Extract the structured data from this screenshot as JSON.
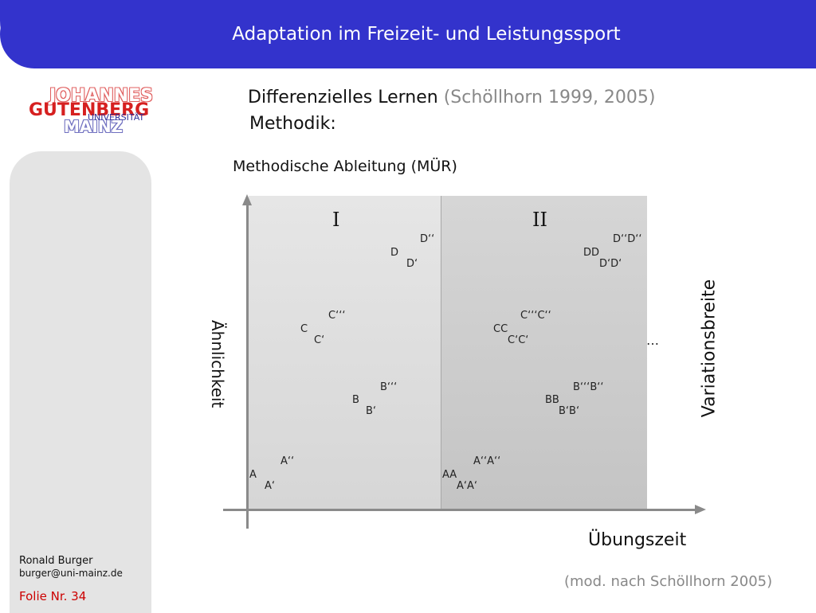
{
  "header": {
    "title": "Adaptation im Freizeit- und Leistungssport"
  },
  "logo": {
    "line1": "JOHANNES",
    "line2": "GUTENBERG",
    "line3": "MAINZ",
    "line4": "UNIVERSITÄT"
  },
  "content": {
    "heading_main": "Differenzielles Lernen",
    "heading_cite": "(Schöllhorn 1999, 2005)",
    "heading_sub": "Methodik:",
    "subtitle": "Methodische Ableitung (MÜR)"
  },
  "diagram": {
    "regions": [
      "I",
      "II"
    ],
    "y_axis_label": "Ähnlichkeit",
    "x_axis_label": "Übungszeit",
    "right_label": "Variationsbreite",
    "ellipsis": "…",
    "points": {
      "d1": "D‘‘",
      "d2": "D",
      "d3": "D‘",
      "d4": "D‘‘D‘‘",
      "d5": "DD",
      "d6": "D‘D‘",
      "c1": "C‘‘‘",
      "c2": "C",
      "c3": "C‘",
      "c4": "C‘‘‘C‘‘",
      "c5": "CC",
      "c6": "C‘C‘",
      "b1": "B‘‘‘",
      "b2": "B",
      "b3": "B‘",
      "b4": "B‘‘‘B‘‘",
      "b5": "BB",
      "b6": "B‘B‘",
      "a1": "A‘‘",
      "a2": "A",
      "a3": "A‘",
      "a4": "A‘‘A‘‘",
      "a5": "AA",
      "a6": "A‘A‘"
    }
  },
  "footer": {
    "source": "(mod. nach Schöllhorn 2005)",
    "author": "Ronald Burger",
    "email": "burger@uni-mainz.de",
    "slide_no": "Folie Nr. 34"
  }
}
